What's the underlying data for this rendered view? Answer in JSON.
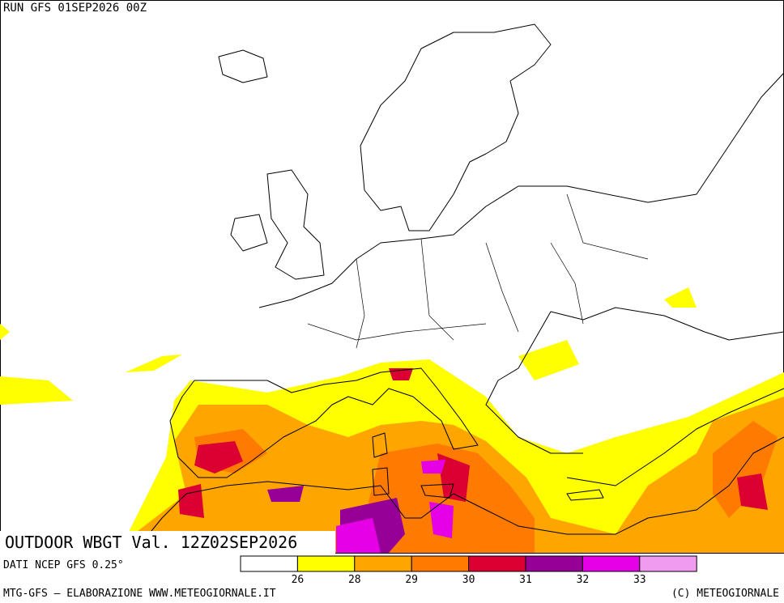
{
  "header": {
    "run": "RUN GFS 01SEP2026 00Z"
  },
  "map": {
    "title": "OUTDOOR WBGT Val. 12Z02SEP2026"
  },
  "legend": {
    "colors": [
      "#ffffff",
      "#ffff00",
      "#ffa500",
      "#ff7a00",
      "#dc0032",
      "#960096",
      "#e600e6",
      "#f09bf0"
    ],
    "ticks": [
      26,
      28,
      29,
      30,
      31,
      32,
      33
    ]
  },
  "footer": {
    "source": "DATI NCEP GFS 0.25°",
    "credits": "MTG-GFS — ELABORAZIONE WWW.METEOGIORNALE.IT",
    "copyright": "(C) METEOGIORNALE"
  }
}
